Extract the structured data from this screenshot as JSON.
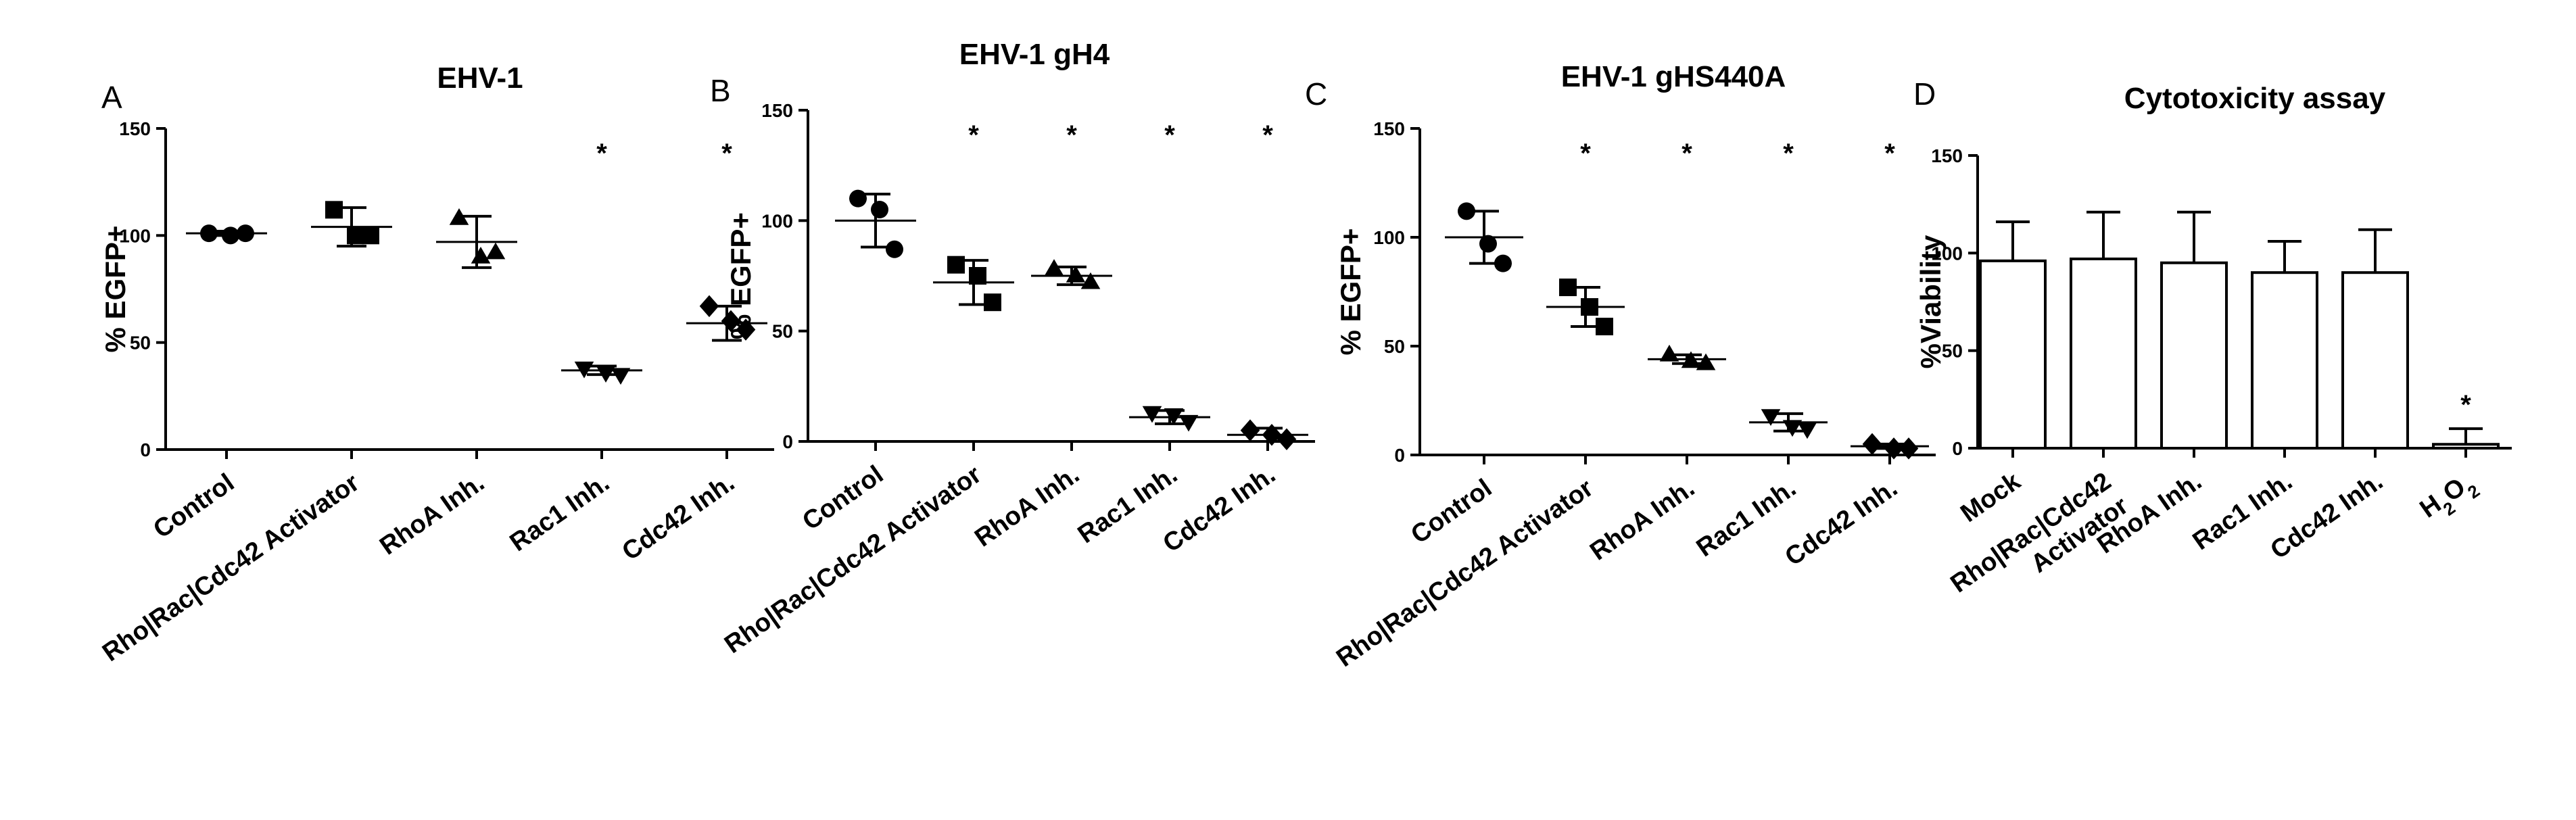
{
  "chart_data": [
    {
      "panel_letter": "A",
      "type": "scatter",
      "title": "EHV-1",
      "ylabel": "% EGFP+",
      "ylim": [
        0,
        150
      ],
      "yticks": [
        0,
        50,
        100,
        150
      ],
      "categories": [
        "Control",
        "Rho|Rac|Cdc42 Activator",
        "RhoA Inh.",
        "Rac1 Inh.",
        "Cdc42 Inh."
      ],
      "markers": [
        "circle",
        "square",
        "triangle-up",
        "triangle-down",
        "diamond"
      ],
      "points": [
        [
          101,
          100,
          101
        ],
        [
          112,
          100,
          100
        ],
        [
          108,
          90,
          92
        ],
        [
          38,
          36,
          35
        ],
        [
          67,
          60,
          56
        ]
      ],
      "mean": [
        101,
        104,
        97,
        37,
        59
      ],
      "sd": [
        1,
        9,
        12,
        2,
        8
      ],
      "significance": [
        "",
        "",
        "",
        "*",
        "*"
      ]
    },
    {
      "panel_letter": "B",
      "type": "scatter",
      "title": "EHV-1 gH4",
      "ylabel": "% EGFP+",
      "ylim": [
        0,
        150
      ],
      "yticks": [
        0,
        50,
        100,
        150
      ],
      "categories": [
        "Control",
        "Rho|Rac|Cdc42  Activator",
        "RhoA Inh.",
        "Rac1 Inh.",
        "Cdc42 Inh."
      ],
      "markers": [
        "circle",
        "square",
        "triangle-up",
        "triangle-down",
        "diamond"
      ],
      "points": [
        [
          110,
          105,
          87
        ],
        [
          80,
          75,
          63
        ],
        [
          78,
          75,
          72
        ],
        [
          13,
          12,
          9
        ],
        [
          5,
          3,
          1
        ]
      ],
      "mean": [
        100,
        72,
        75,
        11,
        3
      ],
      "sd": [
        12,
        10,
        4,
        3,
        3
      ],
      "significance": [
        "",
        "*",
        "*",
        "*",
        "*"
      ]
    },
    {
      "panel_letter": "C",
      "type": "scatter",
      "title": "EHV-1 gHS440A",
      "ylabel": "% EGFP+",
      "ylim": [
        0,
        150
      ],
      "yticks": [
        0,
        50,
        100,
        150
      ],
      "categories": [
        "Control",
        "Rho|Rac|Cdc42 Activator",
        "RhoA Inh.",
        "Rac1 Inh.",
        "Cdc42 Inh."
      ],
      "markers": [
        "circle",
        "square",
        "triangle-up",
        "triangle-down",
        "diamond"
      ],
      "points": [
        [
          112,
          97,
          88
        ],
        [
          77,
          68,
          59
        ],
        [
          46,
          43,
          42
        ],
        [
          18,
          13,
          12
        ],
        [
          5,
          3,
          3
        ]
      ],
      "mean": [
        100,
        68,
        44,
        15,
        4
      ],
      "sd": [
        12,
        9,
        2,
        4,
        1
      ],
      "significance": [
        "",
        "*",
        "*",
        "*",
        "*"
      ]
    },
    {
      "panel_letter": "D",
      "type": "bar",
      "title": "Cytotoxicity assay",
      "ylabel": "%Viability",
      "ylim": [
        0,
        150
      ],
      "yticks": [
        0,
        50,
        100,
        150
      ],
      "categories": [
        "Mock",
        "Rho|Rac|Cdc42\nActivator",
        "RhoA Inh.",
        "Rac1 Inh.",
        "Cdc42 Inh.",
        "H2O2"
      ],
      "values": [
        96,
        97,
        95,
        90,
        90,
        2
      ],
      "errors": [
        20,
        24,
        26,
        16,
        22,
        8
      ],
      "significance": [
        "",
        "",
        "",
        "",
        "",
        "*"
      ]
    }
  ]
}
